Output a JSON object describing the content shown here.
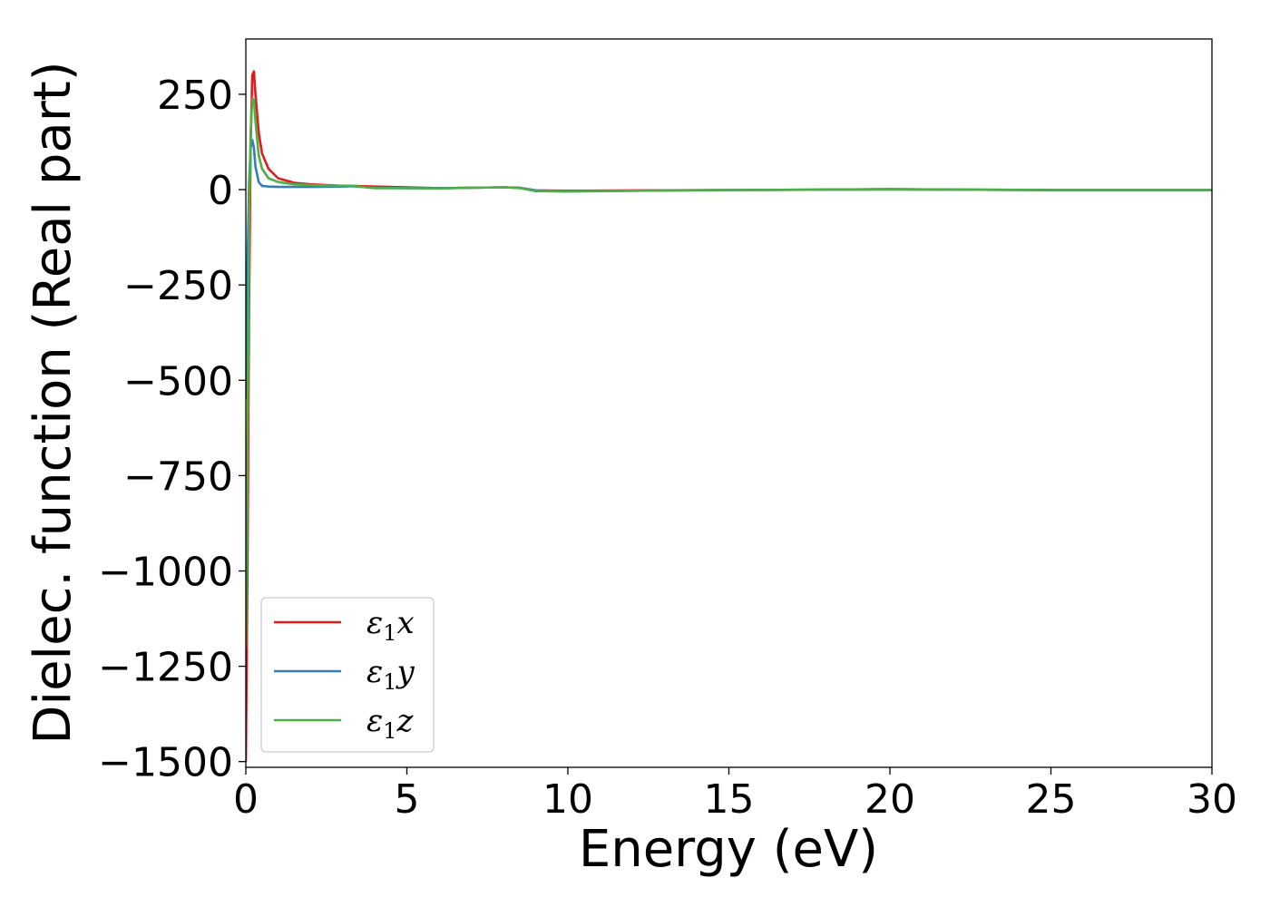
{
  "chart_data": {
    "type": "line",
    "title": "",
    "xlabel": "Energy (eV)",
    "ylabel": "Dielec. function (Real part)",
    "xlim": [
      0,
      30
    ],
    "ylim": [
      -1515,
      395
    ],
    "xticks": [
      0,
      5,
      10,
      15,
      20,
      25,
      30
    ],
    "yticks": [
      -1500,
      -1250,
      -1000,
      -750,
      -500,
      -250,
      0,
      250
    ],
    "grid": false,
    "legend_position": "lower-left",
    "series": [
      {
        "name": "ε₁x",
        "legend": {
          "base": "ε",
          "sub": "1",
          "axis": "x"
        },
        "color": "#e41a1c",
        "x": [
          0.0,
          0.05,
          0.1,
          0.15,
          0.2,
          0.25,
          0.3,
          0.4,
          0.5,
          0.7,
          1.0,
          1.5,
          2.0,
          3.0,
          3.3,
          4.0,
          5.0,
          6.0,
          7.0,
          8.0,
          8.5,
          9.0,
          10.0,
          12.0,
          15.0,
          18.0,
          20.0,
          22.0,
          25.0,
          30.0
        ],
        "y": [
          -1500,
          -1000,
          -300,
          120,
          300,
          310,
          250,
          150,
          95,
          55,
          30,
          18,
          14,
          10,
          10,
          8,
          6,
          4,
          5,
          6,
          5,
          -2,
          -3,
          -2,
          -1,
          0,
          1,
          0,
          -1,
          -1
        ]
      },
      {
        "name": "ε₁y",
        "legend": {
          "base": "ε",
          "sub": "1",
          "axis": "y"
        },
        "color": "#377eb8",
        "x": [
          0.0,
          0.05,
          0.1,
          0.15,
          0.2,
          0.25,
          0.3,
          0.4,
          0.5,
          0.7,
          1.0,
          2.0,
          3.0,
          3.3,
          4.0,
          5.0,
          6.0,
          7.0,
          8.0,
          8.5,
          9.0,
          10.0,
          12.0,
          15.0,
          18.0,
          20.0,
          22.0,
          25.0,
          30.0
        ],
        "y": [
          -550,
          -200,
          20,
          110,
          130,
          110,
          60,
          20,
          10,
          8,
          7,
          7,
          8,
          9,
          5,
          4,
          4,
          5,
          6,
          5,
          -2,
          -4,
          -3,
          -1,
          0,
          1,
          0,
          -1,
          -1
        ]
      },
      {
        "name": "ε₁z",
        "legend": {
          "base": "ε",
          "sub": "1",
          "axis": "z"
        },
        "color": "#4daf4a",
        "x": [
          0.0,
          0.05,
          0.1,
          0.15,
          0.2,
          0.25,
          0.3,
          0.4,
          0.5,
          0.7,
          1.0,
          1.5,
          2.0,
          3.0,
          3.3,
          4.0,
          5.0,
          6.0,
          7.0,
          8.0,
          8.5,
          9.0,
          10.0,
          12.0,
          15.0,
          18.0,
          20.0,
          22.0,
          25.0,
          30.0
        ],
        "y": [
          -1200,
          -700,
          -100,
          150,
          240,
          235,
          180,
          90,
          55,
          30,
          20,
          14,
          12,
          10,
          10,
          4,
          4,
          3,
          5,
          6,
          4,
          -4,
          -5,
          -3,
          -1,
          0,
          0,
          0,
          -1,
          -1
        ]
      }
    ]
  }
}
